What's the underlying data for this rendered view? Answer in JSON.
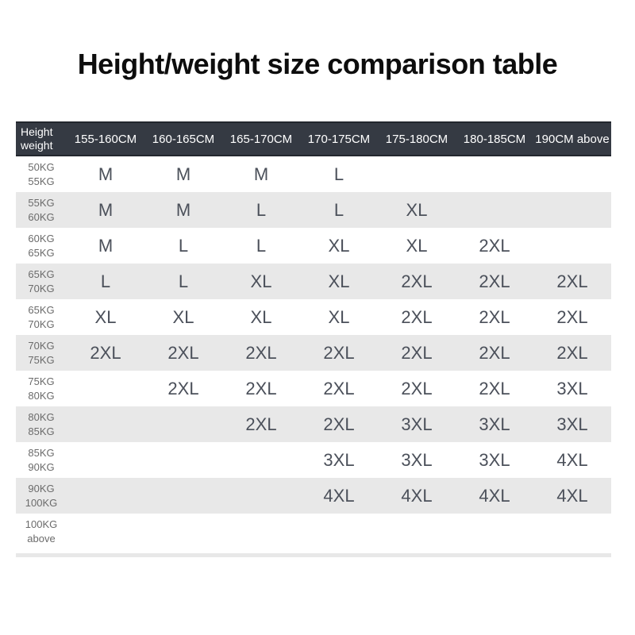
{
  "title": "Height/weight size comparison table",
  "table": {
    "corner": {
      "line1": "Height",
      "line2": "weight"
    },
    "columns": [
      "155-160CM",
      "160-165CM",
      "165-170CM",
      "170-175CM",
      "175-180CM",
      "180-185CM",
      "190CM above"
    ],
    "rows": [
      {
        "weight": [
          "50KG",
          "55KG"
        ],
        "sizes": [
          "M",
          "M",
          "M",
          "L",
          "",
          "",
          ""
        ]
      },
      {
        "weight": [
          "55KG",
          "60KG"
        ],
        "sizes": [
          "M",
          "M",
          "L",
          "L",
          "XL",
          "",
          ""
        ]
      },
      {
        "weight": [
          "60KG",
          "65KG"
        ],
        "sizes": [
          "M",
          "L",
          "L",
          "XL",
          "XL",
          "2XL",
          ""
        ]
      },
      {
        "weight": [
          "65KG",
          "70KG"
        ],
        "sizes": [
          "L",
          "L",
          "XL",
          "XL",
          "2XL",
          "2XL",
          "2XL"
        ]
      },
      {
        "weight": [
          "65KG",
          "70KG"
        ],
        "sizes": [
          "XL",
          "XL",
          "XL",
          "XL",
          "2XL",
          "2XL",
          "2XL"
        ]
      },
      {
        "weight": [
          "70KG",
          "75KG"
        ],
        "sizes": [
          "2XL",
          "2XL",
          "2XL",
          "2XL",
          "2XL",
          "2XL",
          "2XL"
        ]
      },
      {
        "weight": [
          "75KG",
          "80KG"
        ],
        "sizes": [
          "",
          "2XL",
          "2XL",
          "2XL",
          "2XL",
          "2XL",
          "3XL"
        ]
      },
      {
        "weight": [
          "80KG",
          "85KG"
        ],
        "sizes": [
          "",
          "",
          "2XL",
          "2XL",
          "3XL",
          "3XL",
          "3XL"
        ]
      },
      {
        "weight": [
          "85KG",
          "90KG"
        ],
        "sizes": [
          "",
          "",
          "",
          "3XL",
          "3XL",
          "3XL",
          "4XL"
        ]
      },
      {
        "weight": [
          "90KG",
          "100KG"
        ],
        "sizes": [
          "",
          "",
          "",
          "4XL",
          "4XL",
          "4XL",
          "4XL"
        ]
      },
      {
        "weight": [
          "100KG",
          "above"
        ],
        "sizes": [
          "",
          "",
          "",
          "",
          "",
          "",
          ""
        ]
      }
    ]
  },
  "colors": {
    "header_bg": "#353a43",
    "header_text": "#ffffff",
    "stripe_bg": "#e8e8e8",
    "cell_text": "#4b505a",
    "label_text": "#6b6b6b",
    "title_text": "#0d0d0d",
    "page_bg": "#ffffff"
  },
  "chart_data": {
    "type": "table",
    "title": "Height/weight size comparison table",
    "columns": [
      "Height weight",
      "155-160CM",
      "160-165CM",
      "165-170CM",
      "170-175CM",
      "175-180CM",
      "180-185CM",
      "190CM above"
    ],
    "rows": [
      [
        "50KG 55KG",
        "M",
        "M",
        "M",
        "L",
        "",
        "",
        ""
      ],
      [
        "55KG 60KG",
        "M",
        "M",
        "L",
        "L",
        "XL",
        "",
        ""
      ],
      [
        "60KG 65KG",
        "M",
        "L",
        "L",
        "XL",
        "XL",
        "2XL",
        ""
      ],
      [
        "65KG 70KG",
        "L",
        "L",
        "XL",
        "XL",
        "2XL",
        "2XL",
        "2XL"
      ],
      [
        "65KG 70KG",
        "XL",
        "XL",
        "XL",
        "XL",
        "2XL",
        "2XL",
        "2XL"
      ],
      [
        "70KG 75KG",
        "2XL",
        "2XL",
        "2XL",
        "2XL",
        "2XL",
        "2XL",
        "2XL"
      ],
      [
        "75KG 80KG",
        "",
        "2XL",
        "2XL",
        "2XL",
        "2XL",
        "2XL",
        "3XL"
      ],
      [
        "80KG 85KG",
        "",
        "",
        "2XL",
        "2XL",
        "3XL",
        "3XL",
        "3XL"
      ],
      [
        "85KG 90KG",
        "",
        "",
        "",
        "3XL",
        "3XL",
        "3XL",
        "4XL"
      ],
      [
        "90KG 100KG",
        "",
        "",
        "",
        "4XL",
        "4XL",
        "4XL",
        "4XL"
      ],
      [
        "100KG above",
        "",
        "",
        "",
        "",
        "",
        "",
        ""
      ]
    ],
    "layout": {
      "striped_rows": true,
      "header_style": "dark",
      "grid": "off"
    }
  }
}
